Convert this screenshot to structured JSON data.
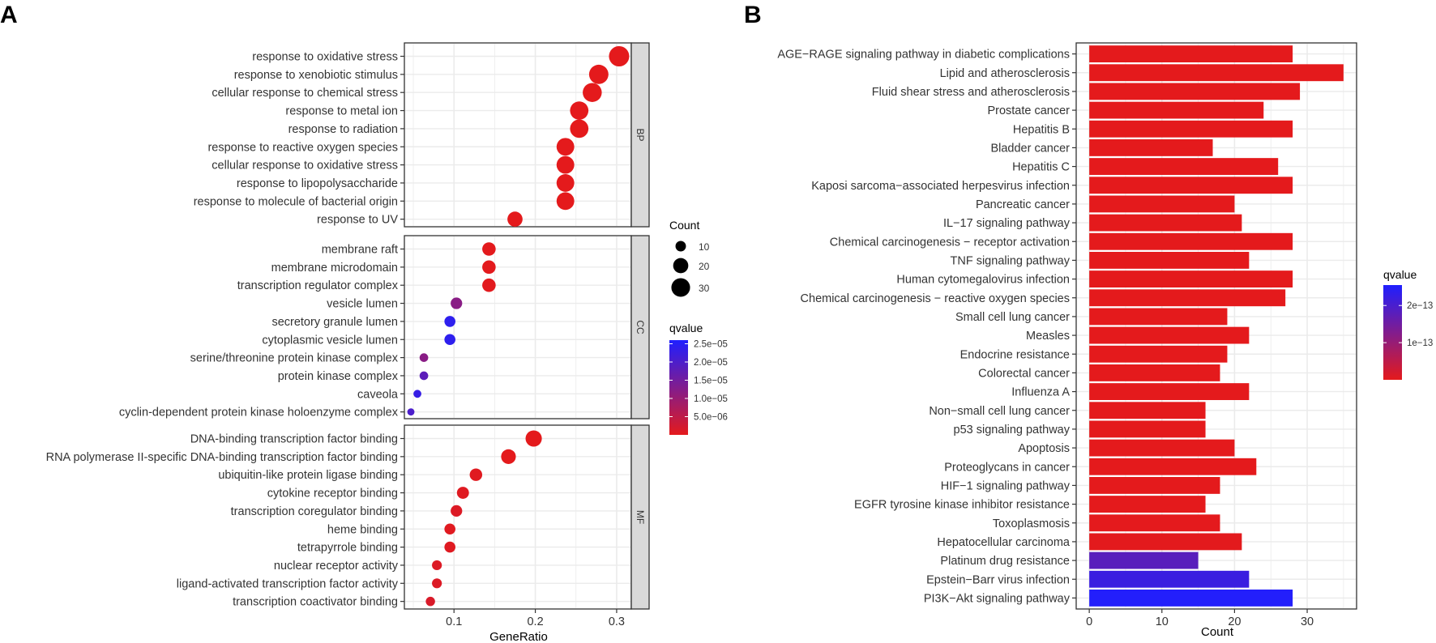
{
  "chart_data": [
    {
      "panel": "A",
      "type": "scatter",
      "subtype": "dot-plot",
      "xlabel": "GeneRatio",
      "ylabel": "",
      "xlim": [
        0.039,
        0.318
      ],
      "xticks": [
        0.1,
        0.2,
        0.3
      ],
      "xtick_labels": [
        "0.1",
        "0.2",
        "0.3"
      ],
      "grid": true,
      "facets": [
        {
          "name": "BP",
          "terms": [
            {
              "label": "response to oxidative stress",
              "gene_ratio": 0.303,
              "count": 35,
              "qvalue": 1e-16
            },
            {
              "label": "response to xenobiotic stimulus",
              "gene_ratio": 0.278,
              "count": 32,
              "qvalue": 1e-16
            },
            {
              "label": "cellular response to chemical stress",
              "gene_ratio": 0.27,
              "count": 31,
              "qvalue": 1e-16
            },
            {
              "label": "response to metal ion",
              "gene_ratio": 0.254,
              "count": 29,
              "qvalue": 1e-16
            },
            {
              "label": "response to radiation",
              "gene_ratio": 0.254,
              "count": 29,
              "qvalue": 1e-16
            },
            {
              "label": "response to reactive oxygen species",
              "gene_ratio": 0.237,
              "count": 27,
              "qvalue": 1e-16
            },
            {
              "label": "cellular response to oxidative stress",
              "gene_ratio": 0.237,
              "count": 27,
              "qvalue": 1e-16
            },
            {
              "label": "response to lipopolysaccharide",
              "gene_ratio": 0.237,
              "count": 27,
              "qvalue": 1e-16
            },
            {
              "label": "response to molecule of bacterial origin",
              "gene_ratio": 0.237,
              "count": 27,
              "qvalue": 1e-16
            },
            {
              "label": "response to UV",
              "gene_ratio": 0.175,
              "count": 20,
              "qvalue": 5e-10
            }
          ]
        },
        {
          "name": "CC",
          "terms": [
            {
              "label": "membrane raft",
              "gene_ratio": 0.143,
              "count": 16,
              "qvalue": 1e-07
            },
            {
              "label": "membrane microdomain",
              "gene_ratio": 0.143,
              "count": 16,
              "qvalue": 1e-07
            },
            {
              "label": "transcription regulator complex",
              "gene_ratio": 0.143,
              "count": 16,
              "qvalue": 2e-07
            },
            {
              "label": "vesicle lumen",
              "gene_ratio": 0.103,
              "count": 12,
              "qvalue": 1.2e-05
            },
            {
              "label": "secretory granule lumen",
              "gene_ratio": 0.095,
              "count": 11,
              "qvalue": 2.4e-05
            },
            {
              "label": "cytoplasmic vesicle lumen",
              "gene_ratio": 0.095,
              "count": 11,
              "qvalue": 2.4e-05
            },
            {
              "label": "serine/threonine protein kinase complex",
              "gene_ratio": 0.063,
              "count": 7,
              "qvalue": 1.2e-05
            },
            {
              "label": "protein kinase complex",
              "gene_ratio": 0.063,
              "count": 7,
              "qvalue": 1.8e-05
            },
            {
              "label": "caveola",
              "gene_ratio": 0.055,
              "count": 6,
              "qvalue": 2.3e-05
            },
            {
              "label": "cyclin-dependent protein kinase holoenzyme complex",
              "gene_ratio": 0.047,
              "count": 5,
              "qvalue": 2e-05
            }
          ]
        },
        {
          "name": "MF",
          "terms": [
            {
              "label": "DNA-binding transcription factor binding",
              "gene_ratio": 0.198,
              "count": 23,
              "qvalue": 1e-10
            },
            {
              "label": "RNA polymerase II-specific DNA-binding transcription factor binding",
              "gene_ratio": 0.167,
              "count": 19,
              "qvalue": 1e-09
            },
            {
              "label": "ubiquitin-like protein ligase binding",
              "gene_ratio": 0.127,
              "count": 14,
              "qvalue": 5e-07
            },
            {
              "label": "cytokine receptor binding",
              "gene_ratio": 0.111,
              "count": 13,
              "qvalue": 6e-07
            },
            {
              "label": "transcription coregulator binding",
              "gene_ratio": 0.103,
              "count": 12,
              "qvalue": 1e-06
            },
            {
              "label": "heme binding",
              "gene_ratio": 0.095,
              "count": 11,
              "qvalue": 5e-07
            },
            {
              "label": "tetrapyrrole binding",
              "gene_ratio": 0.095,
              "count": 11,
              "qvalue": 6e-07
            },
            {
              "label": "nuclear receptor activity",
              "gene_ratio": 0.079,
              "count": 9,
              "qvalue": 1e-06
            },
            {
              "label": "ligand-activated transcription factor activity",
              "gene_ratio": 0.079,
              "count": 9,
              "qvalue": 1e-06
            },
            {
              "label": "transcription coactivator binding",
              "gene_ratio": 0.071,
              "count": 8,
              "qvalue": 1.5e-06
            }
          ]
        }
      ],
      "legend_size": {
        "title": "Count",
        "values": [
          10,
          20,
          30
        ],
        "labels": [
          "10",
          "20",
          "30"
        ]
      },
      "legend_color": {
        "title": "qvalue",
        "range": [
          1e-16,
          2.6e-05
        ],
        "ticks": [
          2.5e-05,
          2e-05,
          1.5e-05,
          1e-05,
          5e-06
        ],
        "tick_labels": [
          "2.5e−05",
          "2.0e−05",
          "1.5e−05",
          "1.0e−05",
          "5.0e−06"
        ],
        "low_color": "#e41a1c",
        "high_color": "#1f1fff"
      }
    },
    {
      "panel": "B",
      "type": "bar",
      "orientation": "horizontal",
      "xlabel": "Count",
      "ylabel": "",
      "xlim": [
        -1.8,
        36.8
      ],
      "xticks": [
        0,
        10,
        20,
        30
      ],
      "xtick_labels": [
        "0",
        "10",
        "20",
        "30"
      ],
      "grid": true,
      "categories": [
        "AGE−RAGE signaling pathway in diabetic complications",
        "Lipid and atherosclerosis",
        "Fluid shear stress and atherosclerosis",
        "Prostate cancer",
        "Hepatitis B",
        "Bladder cancer",
        "Hepatitis C",
        "Kaposi sarcoma−associated herpesvirus infection",
        "Pancreatic cancer",
        "IL−17 signaling pathway",
        "Chemical carcinogenesis − receptor activation",
        "TNF signaling pathway",
        "Human cytomegalovirus infection",
        "Chemical carcinogenesis − reactive oxygen species",
        "Small cell lung cancer",
        "Measles",
        "Endocrine resistance",
        "Colorectal cancer",
        "Influenza A",
        "Non−small cell lung cancer",
        "p53 signaling pathway",
        "Apoptosis",
        "Proteoglycans in cancer",
        "HIF−1 signaling pathway",
        "EGFR tyrosine kinase inhibitor resistance",
        "Toxoplasmosis",
        "Hepatocellular carcinoma",
        "Platinum drug resistance",
        "Epstein−Barr virus infection",
        "PI3K−Akt signaling pathway"
      ],
      "values": [
        28,
        35,
        29,
        24,
        28,
        17,
        26,
        28,
        20,
        21,
        28,
        22,
        28,
        27,
        19,
        22,
        19,
        18,
        22,
        16,
        16,
        20,
        23,
        18,
        16,
        18,
        21,
        15,
        22,
        28
      ],
      "qvalues": [
        1e-17,
        1e-17,
        2e-17,
        2e-17,
        3e-17,
        4e-17,
        5e-17,
        6e-17,
        7e-17,
        8e-17,
        1e-16,
        1.1e-16,
        1.3e-16,
        1.5e-16,
        1.7e-16,
        1.9e-16,
        2.1e-16,
        2.4e-16,
        2.7e-16,
        3e-16,
        3.3e-16,
        3.7e-16,
        4.1e-16,
        4.6e-16,
        5.2e-16,
        5.8e-16,
        6.5e-16,
        1.8e-13,
        2.2e-13,
        2.5e-13
      ],
      "legend_color": {
        "title": "qvalue",
        "range": [
          0,
          2.55e-13
        ],
        "ticks": [
          1e-13,
          2e-13
        ],
        "tick_labels": [
          "1e−13",
          "2e−13"
        ],
        "low_color": "#e41a1c",
        "high_color": "#1f1fff"
      }
    }
  ],
  "panels": {
    "a_label": "A",
    "b_label": "B"
  }
}
